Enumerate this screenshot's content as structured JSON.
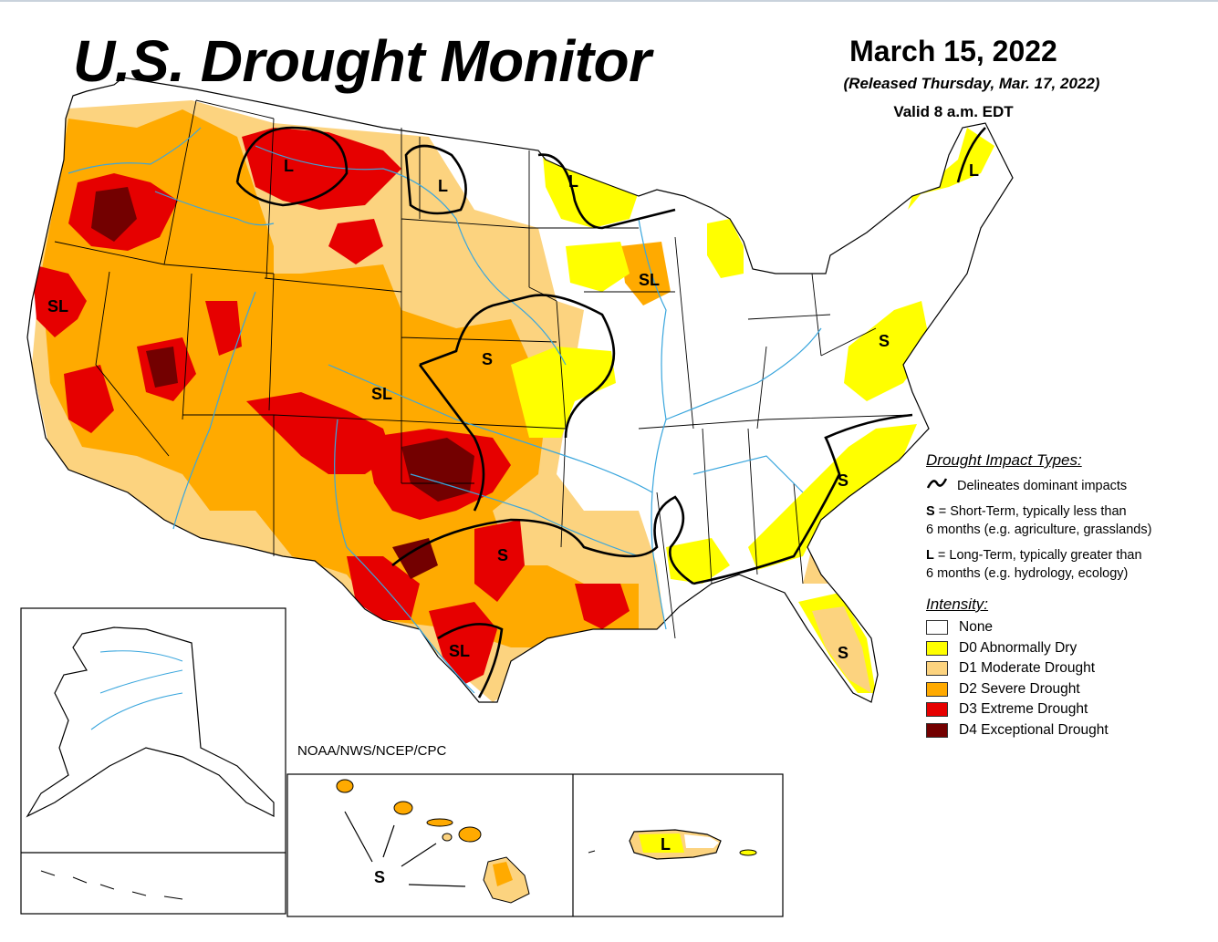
{
  "title": "U.S. Drought Monitor",
  "date": "March 15, 2022",
  "released": "(Released Thursday, Mar. 17, 2022)",
  "valid": "Valid 8 a.m. EDT",
  "source": "NOAA/NWS/NCEP/CPC",
  "impact_types": {
    "heading": "Drought Impact Types:",
    "delineates": "Delineates dominant impacts",
    "short_key": "S",
    "short_line1": " = Short-Term, typically less than",
    "short_line2": "6 months (e.g. agriculture, grasslands)",
    "long_key": "L",
    "long_line1": " = Long-Term, typically greater than",
    "long_line2": "6 months (e.g. hydrology, ecology)"
  },
  "intensity": {
    "heading": "Intensity:",
    "levels": [
      {
        "label": "None",
        "color": "#ffffff"
      },
      {
        "label": "D0 Abnormally Dry",
        "color": "#ffff00"
      },
      {
        "label": "D1 Moderate Drought",
        "color": "#fcd37f"
      },
      {
        "label": "D2 Severe Drought",
        "color": "#ffaa00"
      },
      {
        "label": "D3 Extreme Drought",
        "color": "#e60000"
      },
      {
        "label": "D4 Exceptional Drought",
        "color": "#730000"
      }
    ]
  },
  "map_labels": {
    "montana": "L",
    "north_dakota": "L",
    "minnesota": "L",
    "maine": "L",
    "california": "SL",
    "wisconsin": "SL",
    "colorado": "SL",
    "texas_south": "SL",
    "kansas": "S",
    "texas_central": "S",
    "maryland": "S",
    "carolinas": "S",
    "florida": "S",
    "hawaii": "S",
    "puerto_rico": "L"
  },
  "colors": {
    "river": "#3aa6dd",
    "border": "#000000",
    "impact_line": "#000000"
  }
}
